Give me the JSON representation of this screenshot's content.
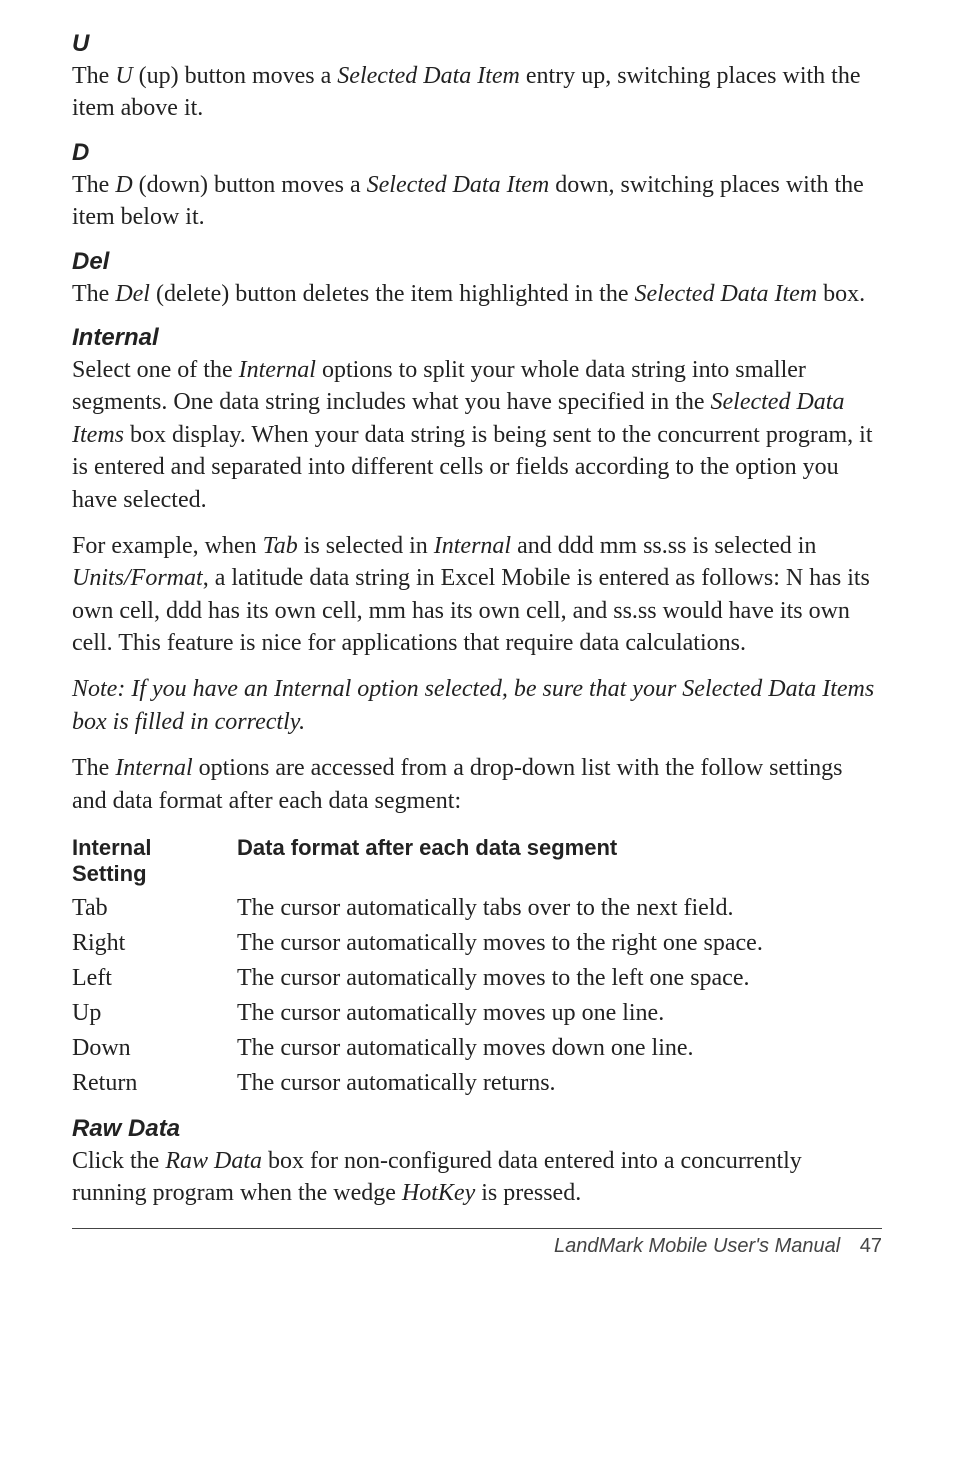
{
  "sec_u": {
    "heading": "U",
    "p1_a": "The ",
    "p1_b": "U",
    "p1_c": " (up) button moves a ",
    "p1_d": "Selected Data Item",
    "p1_e": " entry up, switching places with the item above it."
  },
  "sec_d": {
    "heading": "D",
    "p1_a": "The ",
    "p1_b": "D",
    "p1_c": " (down) button moves a ",
    "p1_d": "Selected Data Item",
    "p1_e": " down, switching places with the item below it."
  },
  "sec_del": {
    "heading": "Del",
    "p1_a": "The ",
    "p1_b": "Del",
    "p1_c": " (delete) button deletes the item highlighted in the ",
    "p1_d": "Selected Data Item",
    "p1_e": " box."
  },
  "sec_internal": {
    "heading": "Internal",
    "p1_a": "Select one of the ",
    "p1_b": "Internal",
    "p1_c": " options to split your whole data string into smaller segments. One data string includes what you have specified in the ",
    "p1_d": "Selected Data Items",
    "p1_e": " box display. When your data string is being sent to the concurrent program, it is entered and separated into different cells or fields according to the option you have selected.",
    "p2_a": "For example, when ",
    "p2_b": "Tab",
    "p2_c": " is selected in ",
    "p2_d": "Internal",
    "p2_e": " and ddd mm ss.ss is selected in ",
    "p2_f": "Units/Format",
    "p2_g": ", a latitude data string in Excel Mobile is entered as follows: N has its own cell, ddd has its own cell, mm has its own cell, and ss.ss would have its own cell. This feature is nice for applications that require data calculations.",
    "note": "Note: If you have an Internal option selected, be sure that your Selected Data Items box is filled in correctly.",
    "p3_a": "The ",
    "p3_b": "Internal",
    "p3_c": " options are accessed from a drop-down list with the follow settings and data format after each data segment:"
  },
  "settings_table": {
    "h1a": "Internal",
    "h1b": "Setting",
    "h2": "Data format after each data segment",
    "rows": [
      {
        "k": "Tab",
        "v": "The cursor automatically tabs over to the next field."
      },
      {
        "k": "Right",
        "v": "The cursor automatically moves to the right one space."
      },
      {
        "k": "Left",
        "v": "The cursor automatically moves to the left one space."
      },
      {
        "k": "Up",
        "v": "The cursor automatically moves up one line."
      },
      {
        "k": "Down",
        "v": "The cursor automatically moves down one line."
      },
      {
        "k": "Return",
        "v": "The cursor automatically returns."
      }
    ]
  },
  "sec_raw": {
    "heading": "Raw Data",
    "p1_a": "Click the ",
    "p1_b": "Raw Data",
    "p1_c": " box for non-configured data entered into a concurrently running program when the wedge ",
    "p1_d": "HotKey",
    "p1_e": " is pressed."
  },
  "footer": {
    "title": "LandMark Mobile User's Manual",
    "page": "47"
  }
}
